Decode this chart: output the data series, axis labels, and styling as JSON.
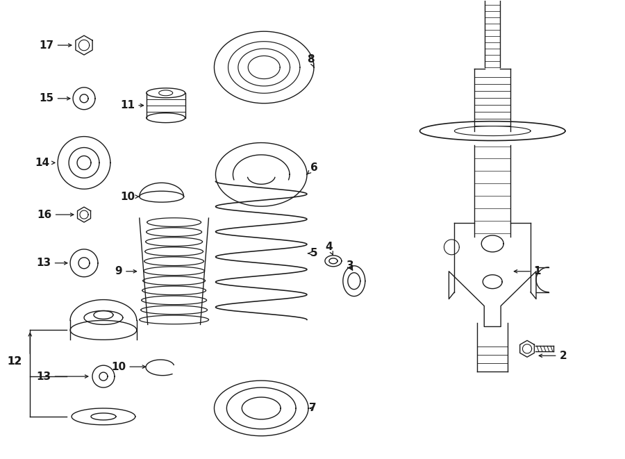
{
  "bg_color": "#ffffff",
  "line_color": "#1a1a1a",
  "line_width": 1.0,
  "figsize": [
    9.0,
    6.61
  ],
  "dpi": 100
}
